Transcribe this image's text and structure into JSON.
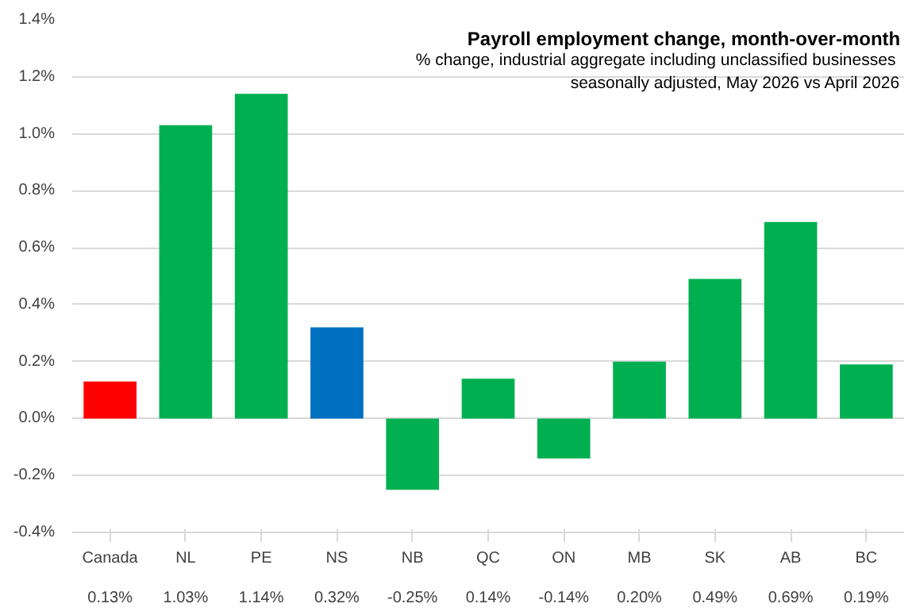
{
  "chart_data": {
    "type": "bar",
    "title": "Payroll employment change, month-over-month",
    "subtitle": "% change, industrial aggregate  including unclassified businesses\nseasonally adjusted, May 2026 vs April 2026",
    "categories": [
      "Canada",
      "NL",
      "PE",
      "NS",
      "NB",
      "QC",
      "ON",
      "MB",
      "SK",
      "AB",
      "BC"
    ],
    "values": [
      0.13,
      1.03,
      1.14,
      0.32,
      -0.25,
      0.14,
      -0.14,
      0.2,
      0.49,
      0.69,
      0.19
    ],
    "colors": [
      "#ff0000",
      "#00b050",
      "#00b050",
      "#0070c0",
      "#00b050",
      "#00b050",
      "#00b050",
      "#00b050",
      "#00b050",
      "#00b050",
      "#00b050"
    ],
    "value_labels": [
      "0.13%",
      "1.03%",
      "1.14%",
      "0.32%",
      "-0.25%",
      "0.14%",
      "-0.14%",
      "0.20%",
      "0.49%",
      "0.69%",
      "0.19%"
    ],
    "ylim": [
      -0.4,
      1.4
    ],
    "yticks": [
      {
        "value": -0.4,
        "label": "-0.4%"
      },
      {
        "value": -0.2,
        "label": "-0.2%"
      },
      {
        "value": 0,
        "label": "0.0%"
      },
      {
        "value": 0.2,
        "label": "0.2%"
      },
      {
        "value": 0.4,
        "label": "0.4%"
      },
      {
        "value": 0.6,
        "label": "0.6%"
      },
      {
        "value": 0.8,
        "label": "0.8%"
      },
      {
        "value": 1.0,
        "label": "1.0%"
      },
      {
        "value": 1.2,
        "label": "1.2%"
      },
      {
        "value": 1.4,
        "label": "1.4%"
      }
    ],
    "grid": "y"
  }
}
